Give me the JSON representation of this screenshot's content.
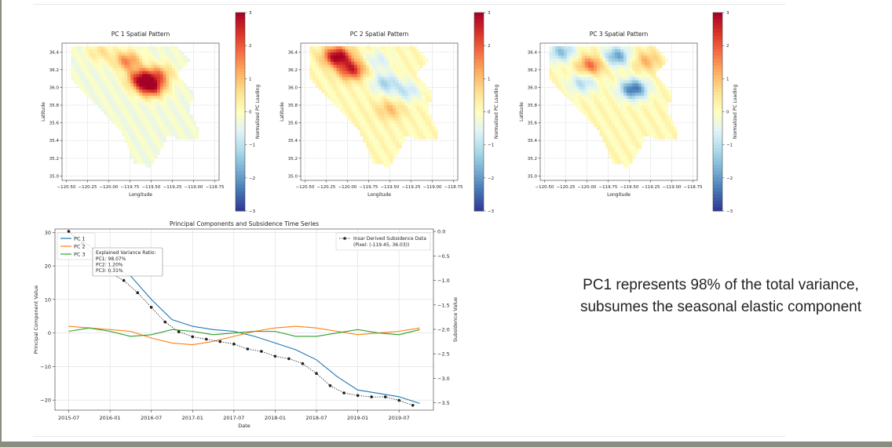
{
  "caption": {
    "line1": "PC1 represents 98% of the total variance,",
    "line2": "subsumes the seasonal elastic component"
  },
  "colors": {
    "diverging": [
      "#313695",
      "#4575b4",
      "#74add1",
      "#abd9e9",
      "#e0f3f8",
      "#ffffbf",
      "#fee090",
      "#fdae61",
      "#f46d43",
      "#d73027",
      "#a50026"
    ],
    "pc1": "#1f77b4",
    "pc2": "#ff7f0e",
    "pc3": "#2ca02c",
    "insar": "#222222"
  },
  "maps": [
    {
      "title": "PC 1 Spatial Pattern",
      "xlabel": "Longitude",
      "ylabel": "Latitude",
      "xticks": [
        "−120.50",
        "−120.25",
        "−120.00",
        "−119.75",
        "−119.50",
        "−119.25",
        "−119.00",
        "−118.75"
      ],
      "yticks": [
        "36.4",
        "36.2",
        "36.0",
        "35.8",
        "35.6",
        "35.4",
        "35.2",
        "35.0"
      ],
      "cbar_label": "Normalized PC Loading",
      "cbar_ticks": [
        "3",
        "2",
        "1",
        "0",
        "−1",
        "−2",
        "−3"
      ],
      "hotspots": [
        {
          "lon": -119.62,
          "lat": 36.1,
          "v": 2.6
        },
        {
          "lon": -119.5,
          "lat": 36.0,
          "v": 2.8
        },
        {
          "lon": -119.78,
          "lat": 36.3,
          "v": 1.8
        },
        {
          "lon": -120.1,
          "lat": 36.4,
          "v": 0.8
        },
        {
          "lon": -119.4,
          "lat": 36.15,
          "v": 1.5
        }
      ]
    },
    {
      "title": "PC 2 Spatial Pattern",
      "xlabel": "Longitude",
      "ylabel": "Latitude",
      "xticks": [
        "−120.50",
        "−120.25",
        "−120.00",
        "−119.75",
        "−119.50",
        "−119.25",
        "−119.00",
        "−118.75"
      ],
      "yticks": [
        "36.4",
        "36.2",
        "36.0",
        "35.8",
        "35.6",
        "35.4",
        "35.2",
        "35.0"
      ],
      "cbar_label": "Normalized PC Loading",
      "cbar_ticks": [
        "3",
        "2",
        "1",
        "0",
        "−1",
        "−2",
        "−3"
      ],
      "hotspots": [
        {
          "lon": -120.12,
          "lat": 36.35,
          "v": 3.0
        },
        {
          "lon": -119.95,
          "lat": 36.2,
          "v": 2.4
        },
        {
          "lon": -119.55,
          "lat": 36.05,
          "v": -1.3
        },
        {
          "lon": -119.3,
          "lat": 35.95,
          "v": -1.0
        },
        {
          "lon": -119.5,
          "lat": 35.75,
          "v": 0.9
        },
        {
          "lon": -119.65,
          "lat": 36.3,
          "v": -0.8
        }
      ]
    },
    {
      "title": "PC 3 Spatial Pattern",
      "xlabel": "Longitude",
      "ylabel": "Latitude",
      "xticks": [
        "−120.50",
        "−120.25",
        "−120.00",
        "−119.75",
        "−119.50",
        "−119.25",
        "−119.00",
        "−118.75"
      ],
      "yticks": [
        "36.4",
        "36.2",
        "36.0",
        "35.8",
        "35.6",
        "35.4",
        "35.2",
        "35.0"
      ],
      "cbar_label": "Normalized PC Loading",
      "cbar_ticks": [
        "3",
        "2",
        "1",
        "0",
        "−1",
        "−2",
        "−3"
      ],
      "hotspots": [
        {
          "lon": -119.45,
          "lat": 35.98,
          "v": -2.6
        },
        {
          "lon": -119.65,
          "lat": 36.35,
          "v": -2.0
        },
        {
          "lon": -120.3,
          "lat": 36.4,
          "v": -1.6
        },
        {
          "lon": -119.95,
          "lat": 36.25,
          "v": 1.7
        },
        {
          "lon": -120.05,
          "lat": 36.05,
          "v": -1.2
        },
        {
          "lon": -119.3,
          "lat": 36.3,
          "v": 1.0
        }
      ]
    }
  ],
  "chart_data": {
    "type": "line",
    "title": "Principal Components and Subsidence Time Series",
    "xlabel": "Date",
    "ylabel": "Principal Component Value",
    "y2label": "Subsidence Value",
    "xlim": [
      "2015-05",
      "2019-12"
    ],
    "ylim": [
      -23,
      31
    ],
    "y2lim": [
      -3.65,
      0.05
    ],
    "xticks": [
      "2015-07",
      "2016-01",
      "2016-07",
      "2017-01",
      "2017-07",
      "2018-01",
      "2018-07",
      "2019-01",
      "2019-07"
    ],
    "yticks": [
      30,
      20,
      10,
      0,
      -10,
      -20
    ],
    "y2ticks": [
      "0.0",
      "−0.5",
      "−1.0",
      "−1.5",
      "−2.0",
      "−2.5",
      "−3.0",
      "−3.5"
    ],
    "grid": true,
    "legend": {
      "position": "top-left",
      "entries": [
        "PC 1",
        "PC 2",
        "PC 3"
      ]
    },
    "legend2": {
      "position": "top-right",
      "entries": [
        "Insar Derived Subsidence Data\n(Pixel: (-119.45, 36.03))"
      ]
    },
    "annotation": {
      "title": "Explained Variance Ratio:",
      "lines": [
        "PC1: 98.07%",
        "PC2: 1.20%",
        "PC3: 0.31%"
      ]
    },
    "series": [
      {
        "name": "PC 1",
        "axis": "left",
        "x": [
          "2015-07",
          "2015-10",
          "2016-01",
          "2016-04",
          "2016-07",
          "2016-10",
          "2017-01",
          "2017-04",
          "2017-07",
          "2017-10",
          "2018-01",
          "2018-04",
          "2018-07",
          "2018-10",
          "2019-01",
          "2019-04",
          "2019-07",
          "2019-10"
        ],
        "y": [
          30,
          26,
          20,
          17,
          10,
          4,
          2,
          1,
          0.5,
          -1,
          -3,
          -5,
          -8,
          -13,
          -17,
          -18,
          -19,
          -21
        ]
      },
      {
        "name": "PC 2",
        "axis": "left",
        "x": [
          "2015-07",
          "2015-10",
          "2016-01",
          "2016-04",
          "2016-07",
          "2016-10",
          "2017-01",
          "2017-04",
          "2017-07",
          "2017-10",
          "2018-01",
          "2018-04",
          "2018-07",
          "2018-10",
          "2019-01",
          "2019-04",
          "2019-07",
          "2019-10"
        ],
        "y": [
          2,
          1.5,
          1,
          0.5,
          -1.5,
          -3,
          -3.5,
          -2.5,
          -1,
          0.5,
          1.5,
          2,
          1.5,
          0.5,
          -0.5,
          0,
          0.5,
          1.5
        ]
      },
      {
        "name": "PC 3",
        "axis": "left",
        "x": [
          "2015-07",
          "2015-10",
          "2016-01",
          "2016-04",
          "2016-07",
          "2016-10",
          "2017-01",
          "2017-04",
          "2017-07",
          "2017-10",
          "2018-01",
          "2018-04",
          "2018-07",
          "2018-10",
          "2019-01",
          "2019-04",
          "2019-07",
          "2019-10"
        ],
        "y": [
          0.5,
          1.5,
          0.5,
          -1,
          -0.5,
          1,
          0.5,
          -0.5,
          0,
          0.5,
          0.5,
          -1,
          -1,
          0,
          1,
          0,
          -0.5,
          1
        ]
      },
      {
        "name": "Insar Derived Subsidence Data",
        "axis": "right",
        "x": [
          "2015-07",
          "2015-09",
          "2015-11",
          "2016-01",
          "2016-03",
          "2016-05",
          "2016-07",
          "2016-09",
          "2016-11",
          "2017-01",
          "2017-03",
          "2017-05",
          "2017-07",
          "2017-09",
          "2017-11",
          "2018-01",
          "2018-03",
          "2018-05",
          "2018-07",
          "2018-09",
          "2018-11",
          "2019-01",
          "2019-03",
          "2019-05",
          "2019-07",
          "2019-09"
        ],
        "y": [
          0.0,
          -0.25,
          -0.55,
          -0.85,
          -1.0,
          -1.25,
          -1.55,
          -1.85,
          -2.05,
          -2.15,
          -2.2,
          -2.25,
          -2.3,
          -2.4,
          -2.45,
          -2.55,
          -2.6,
          -2.7,
          -2.9,
          -3.15,
          -3.3,
          -3.35,
          -3.38,
          -3.38,
          -3.45,
          -3.55
        ]
      }
    ]
  }
}
